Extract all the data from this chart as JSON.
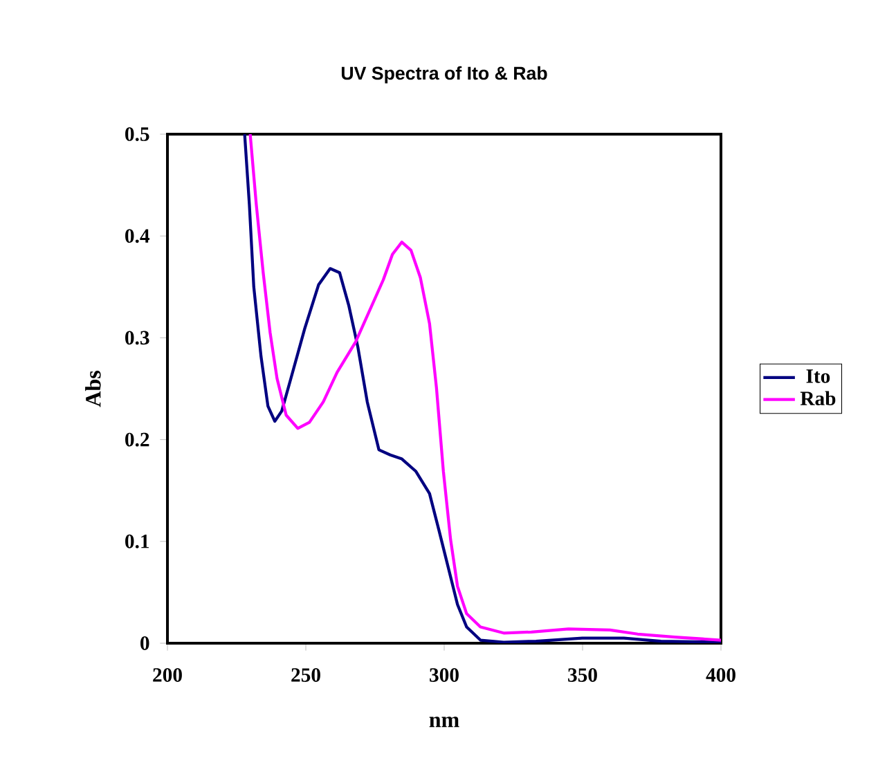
{
  "chart_data": {
    "type": "line",
    "title": "UV Spectra of Ito & Rab",
    "xlabel": "nm",
    "ylabel": "Abs",
    "xlim": [
      200,
      400
    ],
    "xticks": [
      200,
      250,
      300,
      350,
      400
    ],
    "ylim": [
      0,
      0.5
    ],
    "yticks": [
      0,
      0.1,
      0.2,
      0.3,
      0.4,
      0.5
    ],
    "grid": false,
    "legend": "right",
    "marker": "none",
    "line_style": "solid",
    "series": [
      {
        "name": "Ito",
        "color": "#000080",
        "x": [
          227.9,
          229.6,
          231.2,
          233.8,
          236.3,
          238.8,
          241.3,
          244.6,
          249.6,
          254.6,
          258.8,
          262.2,
          265.5,
          268.8,
          272.2,
          276.4,
          280.5,
          284.7,
          289.7,
          294.7,
          298.1,
          301.4,
          304.8,
          308.1,
          313.1,
          321.5,
          333.2,
          349.9,
          364.9,
          378.3,
          400
        ],
        "values": [
          0.5,
          0.431,
          0.35,
          0.282,
          0.233,
          0.218,
          0.228,
          0.26,
          0.309,
          0.352,
          0.368,
          0.364,
          0.332,
          0.291,
          0.237,
          0.19,
          0.185,
          0.181,
          0.169,
          0.147,
          0.111,
          0.075,
          0.038,
          0.016,
          0.003,
          0.001,
          0.002,
          0.005,
          0.005,
          0.002,
          0.001
        ]
      },
      {
        "name": "Rab",
        "color": "#ff00ff",
        "x": [
          229.9,
          232.1,
          234.6,
          237.1,
          239.6,
          242.9,
          247.1,
          251.3,
          256.3,
          261.3,
          268.0,
          278.0,
          281.3,
          284.7,
          288.0,
          291.4,
          294.7,
          297.2,
          299.7,
          302.3,
          304.8,
          308.1,
          313.1,
          321.5,
          331.5,
          344.9,
          359.9,
          369.9,
          383.3,
          400
        ],
        "values": [
          0.5,
          0.431,
          0.364,
          0.305,
          0.26,
          0.224,
          0.211,
          0.217,
          0.237,
          0.266,
          0.296,
          0.357,
          0.382,
          0.394,
          0.386,
          0.359,
          0.314,
          0.251,
          0.169,
          0.102,
          0.056,
          0.029,
          0.016,
          0.01,
          0.011,
          0.014,
          0.013,
          0.009,
          0.006,
          0.003
        ]
      }
    ]
  }
}
